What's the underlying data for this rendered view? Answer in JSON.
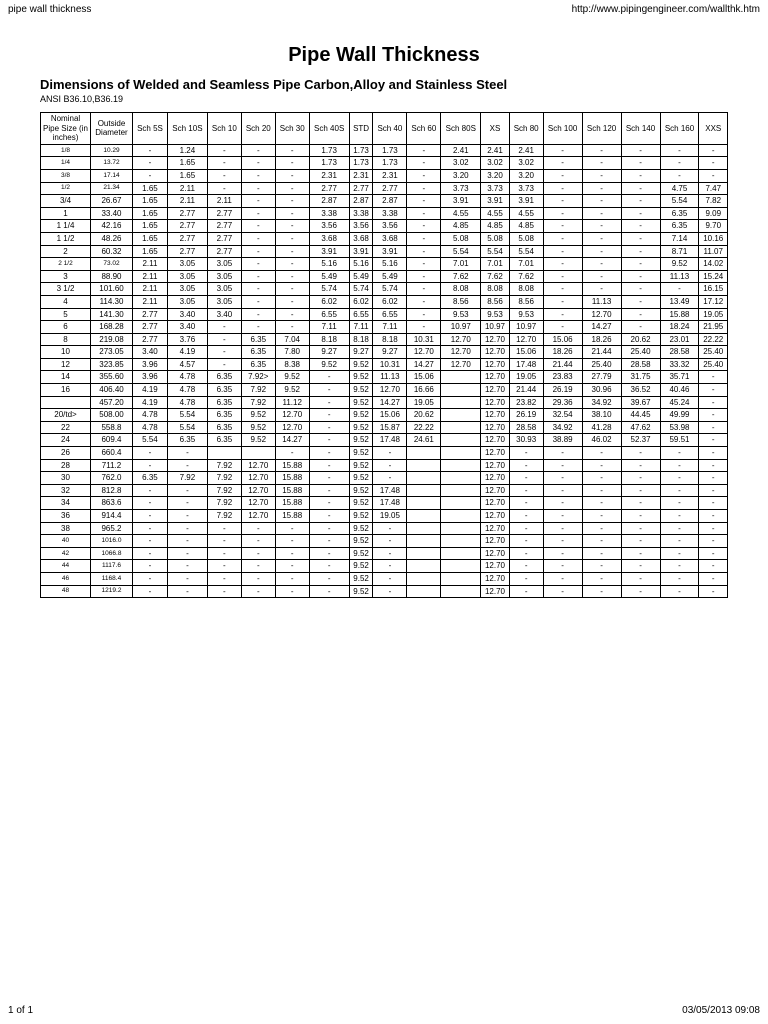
{
  "browser": {
    "title": "pipe wall thickness",
    "url": "http://www.pipingengineer.com/wallthk.htm"
  },
  "page": {
    "title": "Pipe Wall Thickness",
    "subtitle": "Dimensions of Welded and Seamless Pipe Carbon,Alloy and Stainless Steel",
    "standard": "ANSI B36.10,B36.19"
  },
  "footer": {
    "pages": "1 of 1",
    "date": "03/05/2013 09:08"
  },
  "table": {
    "headers": [
      "Nominal Pipe Size (in inches)",
      "Outside Diameter",
      "Sch 5S",
      "Sch 10S",
      "Sch 10",
      "Sch 20",
      "Sch 30",
      "Sch 40S",
      "STD",
      "Sch 40",
      "Sch 60",
      "Sch 80S",
      "XS",
      "Sch 80",
      "Sch 100",
      "Sch 120",
      "Sch 140",
      "Sch 160",
      "XXS"
    ],
    "rows": [
      [
        "1/8",
        "10.29",
        "-",
        "1.24",
        "-",
        "-",
        "-",
        "1.73",
        "1.73",
        "1.73",
        "-",
        "2.41",
        "2.41",
        "2.41",
        "-",
        "-",
        "-",
        "-",
        "-"
      ],
      [
        "1/4",
        "13.72",
        "-",
        "1.65",
        "-",
        "-",
        "-",
        "1.73",
        "1.73",
        "1.73",
        "-",
        "3.02",
        "3.02",
        "3.02",
        "-",
        "-",
        "-",
        "-",
        "-"
      ],
      [
        "3/8",
        "17.14",
        "-",
        "1.65",
        "-",
        "-",
        "-",
        "2.31",
        "2.31",
        "2.31",
        "-",
        "3.20",
        "3.20",
        "3.20",
        "-",
        "-",
        "-",
        "-",
        "-"
      ],
      [
        "1/2",
        "21.34",
        "1.65",
        "2.11",
        "-",
        "-",
        "-",
        "2.77",
        "2.77",
        "2.77",
        "-",
        "3.73",
        "3.73",
        "3.73",
        "-",
        "-",
        "-",
        "4.75",
        "7.47"
      ],
      [
        "3/4",
        "26.67",
        "1.65",
        "2.11",
        "2.11",
        "-",
        "-",
        "2.87",
        "2.87",
        "2.87",
        "-",
        "3.91",
        "3.91",
        "3.91",
        "-",
        "-",
        "-",
        "5.54",
        "7.82"
      ],
      [
        "1",
        "33.40",
        "1.65",
        "2.77",
        "2.77",
        "-",
        "-",
        "3.38",
        "3.38",
        "3.38",
        "-",
        "4.55",
        "4.55",
        "4.55",
        "-",
        "-",
        "-",
        "6.35",
        "9.09"
      ],
      [
        "1 1/4",
        "42.16",
        "1.65",
        "2.77",
        "2.77",
        "-",
        "-",
        "3.56",
        "3.56",
        "3.56",
        "-",
        "4.85",
        "4.85",
        "4.85",
        "-",
        "-",
        "-",
        "6.35",
        "9.70"
      ],
      [
        "1 1/2",
        "48.26",
        "1.65",
        "2.77",
        "2.77",
        "-",
        "-",
        "3.68",
        "3.68",
        "3.68",
        "-",
        "5.08",
        "5.08",
        "5.08",
        "-",
        "-",
        "-",
        "7.14",
        "10.16"
      ],
      [
        "2",
        "60.32",
        "1.65",
        "2.77",
        "2.77",
        "-",
        "-",
        "3.91",
        "3.91",
        "3.91",
        "-",
        "5.54",
        "5.54",
        "5.54",
        "-",
        "-",
        "-",
        "8.71",
        "11.07"
      ],
      [
        "2 1/2",
        "73.02",
        "2.11",
        "3.05",
        "3.05",
        "-",
        "-",
        "5.16",
        "5.16",
        "5.16",
        "-",
        "7.01",
        "7.01",
        "7.01",
        "-",
        "-",
        "-",
        "9.52",
        "14.02"
      ],
      [
        "3",
        "88.90",
        "2.11",
        "3.05",
        "3.05",
        "-",
        "-",
        "5.49",
        "5.49",
        "5.49",
        "-",
        "7.62",
        "7.62",
        "7.62",
        "-",
        "-",
        "-",
        "11.13",
        "15.24"
      ],
      [
        "3 1/2",
        "101.60",
        "2.11",
        "3.05",
        "3.05",
        "-",
        "-",
        "5.74",
        "5.74",
        "5.74",
        "-",
        "8.08",
        "8.08",
        "8.08",
        "-",
        "-",
        "-",
        "-",
        "16.15"
      ],
      [
        "4",
        "114.30",
        "2.11",
        "3.05",
        "3.05",
        "-",
        "-",
        "6.02",
        "6.02",
        "6.02",
        "-",
        "8.56",
        "8.56",
        "8.56",
        "-",
        "11.13",
        "-",
        "13.49",
        "17.12"
      ],
      [
        "5",
        "141.30",
        "2.77",
        "3.40",
        "3.40",
        "-",
        "-",
        "6.55",
        "6.55",
        "6.55",
        "-",
        "9.53",
        "9.53",
        "9.53",
        "-",
        "12.70",
        "-",
        "15.88",
        "19.05"
      ],
      [
        "6",
        "168.28",
        "2.77",
        "3.40",
        "-",
        "-",
        "-",
        "7.11",
        "7.11",
        "7.11",
        "-",
        "10.97",
        "10.97",
        "10.97",
        "-",
        "14.27",
        "-",
        "18.24",
        "21.95"
      ],
      [
        "8",
        "219.08",
        "2.77",
        "3.76",
        "-",
        "6.35",
        "7.04",
        "8.18",
        "8.18",
        "8.18",
        "10.31",
        "12.70",
        "12.70",
        "12.70",
        "15.06",
        "18.26",
        "20.62",
        "23.01",
        "22.22"
      ],
      [
        "10",
        "273.05",
        "3.40",
        "4.19",
        "-",
        "6.35",
        "7.80",
        "9.27",
        "9.27",
        "9.27",
        "12.70",
        "12.70",
        "12.70",
        "15.06",
        "18.26",
        "21.44",
        "25.40",
        "28.58",
        "25.40"
      ],
      [
        "12",
        "323.85",
        "3.96",
        "4.57",
        "-",
        "6.35",
        "8.38",
        "9.52",
        "9.52",
        "10.31",
        "14.27",
        "12.70",
        "12.70",
        "17.48",
        "21.44",
        "25.40",
        "28.58",
        "33.32",
        "25.40"
      ],
      [
        "14",
        "355.60",
        "3.96",
        "4.78",
        "6.35",
        "7.92>",
        "9.52",
        "-",
        "9.52",
        "11.13",
        "15.06",
        "",
        "12.70",
        "19.05",
        "23.83",
        "27.79",
        "31.75",
        "35.71",
        "-"
      ],
      [
        "16",
        "406.40",
        "4.19",
        "4.78",
        "6.35",
        "7.92",
        "9.52",
        "-",
        "9.52",
        "12.70",
        "16.66",
        "",
        "12.70",
        "21.44",
        "26.19",
        "30.96",
        "36.52",
        "40.46",
        "-"
      ],
      [
        "",
        "457.20",
        "4.19",
        "4.78",
        "6.35",
        "7.92",
        "11.12",
        "-",
        "9.52",
        "14.27",
        "19.05",
        "",
        "12.70",
        "23.82",
        "29.36",
        "34.92",
        "39.67",
        "45.24",
        "-"
      ],
      [
        "20/td>",
        "508.00",
        "4.78",
        "5.54",
        "6.35",
        "9.52",
        "12.70",
        "-",
        "9.52",
        "15.06",
        "20.62",
        "",
        "12.70",
        "26.19",
        "32.54",
        "38.10",
        "44.45",
        "49.99",
        "-"
      ],
      [
        "22",
        "558.8",
        "4.78",
        "5.54",
        "6.35",
        "9.52",
        "12.70",
        "-",
        "9.52",
        "15.87",
        "22.22",
        "",
        "12.70",
        "28.58",
        "34.92",
        "41.28",
        "47.62",
        "53.98",
        "-"
      ],
      [
        "24",
        "609.4",
        "5.54",
        "6.35",
        "6.35",
        "9.52",
        "14.27",
        "-",
        "9.52",
        "17.48",
        "24.61",
        "",
        "12.70",
        "30.93",
        "38.89",
        "46.02",
        "52.37",
        "59.51",
        "-"
      ],
      [
        "26",
        "660.4",
        "-",
        "-",
        "",
        "",
        "-",
        "-",
        "9.52",
        "-",
        "",
        "",
        "12.70",
        "-",
        "-",
        "-",
        "-",
        "-",
        "-"
      ],
      [
        "28",
        "711.2",
        "-",
        "-",
        "7.92",
        "12.70",
        "15.88",
        "-",
        "9.52",
        "-",
        "",
        "",
        "12.70",
        "-",
        "-",
        "-",
        "-",
        "-",
        "-"
      ],
      [
        "30",
        "762.0",
        "6.35",
        "7.92",
        "7.92",
        "12.70",
        "15.88",
        "-",
        "9.52",
        "-",
        "",
        "",
        "12.70",
        "-",
        "-",
        "-",
        "-",
        "-",
        "-"
      ],
      [
        "32",
        "812.8",
        "-",
        "-",
        "7.92",
        "12.70",
        "15.88",
        "-",
        "9.52",
        "17.48",
        "",
        "",
        "12.70",
        "-",
        "-",
        "-",
        "-",
        "-",
        "-"
      ],
      [
        "34",
        "863.6",
        "-",
        "-",
        "7.92",
        "12.70",
        "15.88",
        "-",
        "9.52",
        "17.48",
        "",
        "",
        "12.70",
        "-",
        "-",
        "-",
        "-",
        "-",
        "-"
      ],
      [
        "36",
        "914.4",
        "-",
        "-",
        "7.92",
        "12.70",
        "15.88",
        "-",
        "9.52",
        "19.05",
        "",
        "",
        "12.70",
        "-",
        "-",
        "-",
        "-",
        "-",
        "-"
      ],
      [
        "38",
        "965.2",
        "-",
        "-",
        "-",
        "-",
        "-",
        "-",
        "9.52",
        "-",
        "",
        "",
        "12.70",
        "-",
        "-",
        "-",
        "-",
        "-",
        "-"
      ],
      [
        "40",
        "1016.0",
        "-",
        "-",
        "-",
        "-",
        "-",
        "-",
        "9.52",
        "-",
        "",
        "",
        "12.70",
        "-",
        "-",
        "-",
        "-",
        "-",
        "-"
      ],
      [
        "42",
        "1066.8",
        "-",
        "-",
        "-",
        "-",
        "-",
        "-",
        "9.52",
        "-",
        "",
        "",
        "12.70",
        "-",
        "-",
        "-",
        "-",
        "-",
        "-"
      ],
      [
        "44",
        "1117.6",
        "-",
        "-",
        "-",
        "-",
        "-",
        "-",
        "9.52",
        "-",
        "",
        "",
        "12.70",
        "-",
        "-",
        "-",
        "-",
        "-",
        "-"
      ],
      [
        "46",
        "1168.4",
        "-",
        "-",
        "-",
        "-",
        "-",
        "-",
        "9.52",
        "-",
        "",
        "",
        "12.70",
        "-",
        "-",
        "-",
        "-",
        "-",
        "-"
      ],
      [
        "48",
        "1219.2",
        "-",
        "-",
        "-",
        "-",
        "-",
        "-",
        "9.52",
        "-",
        "",
        "",
        "12.70",
        "-",
        "-",
        "-",
        "-",
        "-",
        "-"
      ]
    ],
    "small_rows": [
      0,
      1,
      2,
      3,
      9,
      31,
      32,
      33,
      34,
      35
    ]
  }
}
